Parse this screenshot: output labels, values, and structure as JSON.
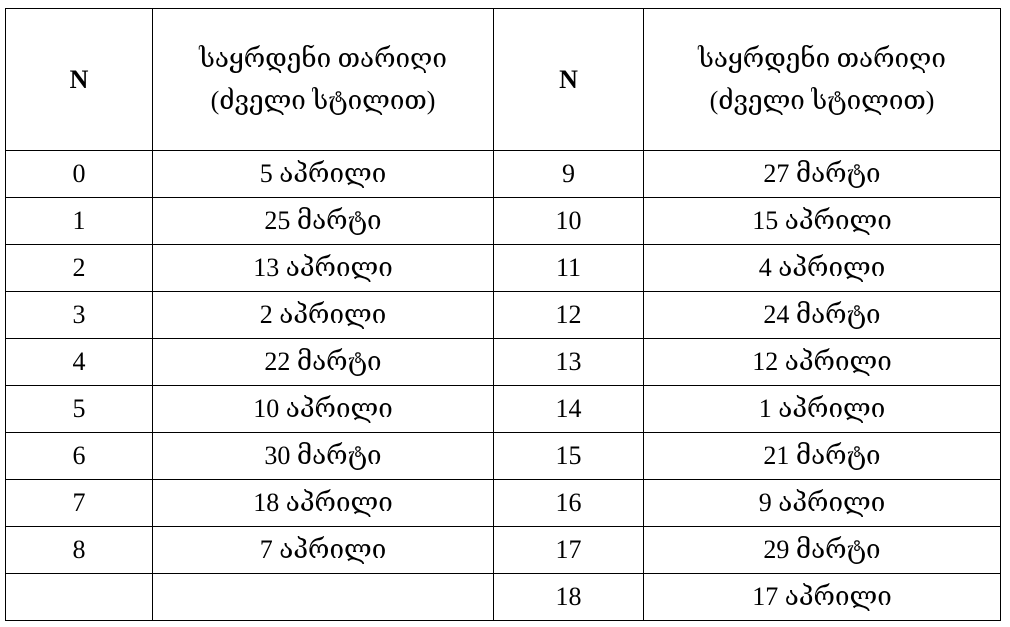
{
  "table": {
    "headers": [
      "N",
      "საყრდენი თარიღი",
      "(ძველი სტილით)"
    ],
    "left_rows": [
      {
        "n": "0",
        "date": "5 აპრილი"
      },
      {
        "n": "1",
        "date": "25 მარტი"
      },
      {
        "n": "2",
        "date": "13 აპრილი"
      },
      {
        "n": "3",
        "date": "2 აპრილი"
      },
      {
        "n": "4",
        "date": "22 მარტი"
      },
      {
        "n": "5",
        "date": "10 აპრილი"
      },
      {
        "n": "6",
        "date": "30 მარტი"
      },
      {
        "n": "7",
        "date": "18 აპრილი"
      },
      {
        "n": "8",
        "date": "7 აპრილი"
      },
      {
        "n": "",
        "date": ""
      }
    ],
    "right_rows": [
      {
        "n": "9",
        "date": "27 მარტი"
      },
      {
        "n": "10",
        "date": "15 აპრილი"
      },
      {
        "n": "11",
        "date": "4 აპრილი"
      },
      {
        "n": "12",
        "date": "24 მარტი"
      },
      {
        "n": "13",
        "date": "12 აპრილი"
      },
      {
        "n": "14",
        "date": "1 აპრილი"
      },
      {
        "n": "15",
        "date": "21 მარტი"
      },
      {
        "n": "16",
        "date": "9 აპრილი"
      },
      {
        "n": "17",
        "date": "29 მარტი"
      },
      {
        "n": "18",
        "date": "17 აპრილი"
      }
    ]
  }
}
